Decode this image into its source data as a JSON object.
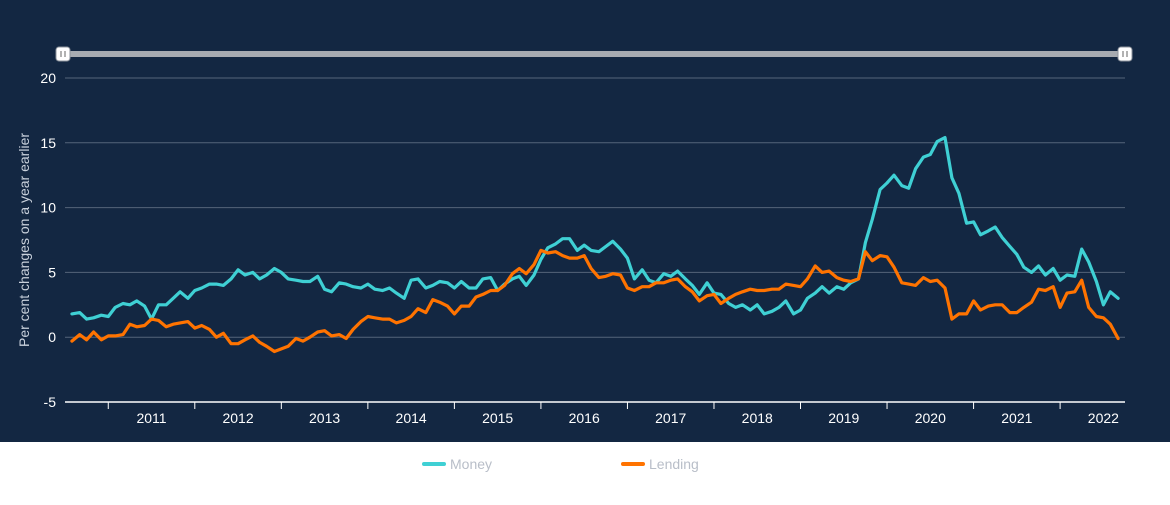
{
  "chart_data": {
    "type": "line",
    "ylabel": "Per cent changes on a year earlier",
    "ylim": [
      -5,
      20
    ],
    "yticks": [
      -5,
      0,
      5,
      10,
      15,
      20
    ],
    "xlim": [
      2010.5,
      2022.75
    ],
    "xtick_labels": [
      "2011",
      "2012",
      "2013",
      "2014",
      "2015",
      "2016",
      "2017",
      "2018",
      "2019",
      "2020",
      "2021",
      "2022"
    ],
    "grid": true,
    "legend": "bottom",
    "series": [
      {
        "name": "Money",
        "color": "#3fd0d4",
        "x": [
          2010.58,
          2010.67,
          2010.75,
          2010.83,
          2010.92,
          2011.0,
          2011.08,
          2011.17,
          2011.25,
          2011.33,
          2011.42,
          2011.5,
          2011.58,
          2011.67,
          2011.75,
          2011.83,
          2011.92,
          2012.0,
          2012.08,
          2012.17,
          2012.25,
          2012.33,
          2012.42,
          2012.5,
          2012.58,
          2012.67,
          2012.75,
          2012.83,
          2012.92,
          2013.0,
          2013.08,
          2013.17,
          2013.25,
          2013.33,
          2013.42,
          2013.5,
          2013.58,
          2013.67,
          2013.75,
          2013.83,
          2013.92,
          2014.0,
          2014.08,
          2014.17,
          2014.25,
          2014.33,
          2014.42,
          2014.5,
          2014.58,
          2014.67,
          2014.75,
          2014.83,
          2014.92,
          2015.0,
          2015.08,
          2015.17,
          2015.25,
          2015.33,
          2015.42,
          2015.5,
          2015.58,
          2015.67,
          2015.75,
          2015.83,
          2015.92,
          2016.0,
          2016.08,
          2016.17,
          2016.25,
          2016.33,
          2016.42,
          2016.5,
          2016.58,
          2016.67,
          2016.75,
          2016.83,
          2016.92,
          2017.0,
          2017.08,
          2017.17,
          2017.25,
          2017.33,
          2017.42,
          2017.5,
          2017.58,
          2017.67,
          2017.75,
          2017.83,
          2017.92,
          2018.0,
          2018.08,
          2018.17,
          2018.25,
          2018.33,
          2018.42,
          2018.5,
          2018.58,
          2018.67,
          2018.75,
          2018.83,
          2018.92,
          2019.0,
          2019.08,
          2019.17,
          2019.25,
          2019.33,
          2019.42,
          2019.5,
          2019.58,
          2019.67,
          2019.75,
          2019.83,
          2019.92,
          2020.0,
          2020.08,
          2020.17,
          2020.25,
          2020.33,
          2020.42,
          2020.5,
          2020.58,
          2020.67,
          2020.75,
          2020.83,
          2020.92,
          2021.0,
          2021.08,
          2021.17,
          2021.25,
          2021.33,
          2021.42,
          2021.5,
          2021.58,
          2021.67,
          2021.75,
          2021.83,
          2021.92,
          2022.0,
          2022.08,
          2022.17,
          2022.25,
          2022.33,
          2022.42,
          2022.5,
          2022.58,
          2022.67
        ],
        "y": [
          1.8,
          1.9,
          1.4,
          1.5,
          1.7,
          1.6,
          2.3,
          2.6,
          2.5,
          2.8,
          2.4,
          1.4,
          2.5,
          2.5,
          3.0,
          3.5,
          3.0,
          3.6,
          3.8,
          4.1,
          4.1,
          4.0,
          4.5,
          5.2,
          4.8,
          5.0,
          4.5,
          4.8,
          5.3,
          5.0,
          4.5,
          4.4,
          4.3,
          4.3,
          4.7,
          3.7,
          3.5,
          4.2,
          4.1,
          3.9,
          3.8,
          4.1,
          3.7,
          3.6,
          3.8,
          3.4,
          3.0,
          4.4,
          4.5,
          3.8,
          4.0,
          4.3,
          4.2,
          3.8,
          4.3,
          3.8,
          3.8,
          4.5,
          4.6,
          3.6,
          4.1,
          4.5,
          4.7,
          4.0,
          4.8,
          6.0,
          6.9,
          7.2,
          7.6,
          7.6,
          6.7,
          7.1,
          6.7,
          6.6,
          7.0,
          7.4,
          6.8,
          6.1,
          4.5,
          5.2,
          4.4,
          4.2,
          4.9,
          4.7,
          5.1,
          4.5,
          4.0,
          3.3,
          4.2,
          3.4,
          3.3,
          2.6,
          2.3,
          2.5,
          2.1,
          2.5,
          1.8,
          2.0,
          2.3,
          2.8,
          1.8,
          2.1,
          3.0,
          3.4,
          3.9,
          3.4,
          3.9,
          3.7,
          4.2,
          4.5,
          7.3,
          9.1,
          11.4,
          11.9,
          12.5,
          11.7,
          11.5,
          13.0,
          13.9,
          14.1,
          15.1,
          15.4,
          12.3,
          11.1,
          8.8,
          8.9,
          7.9,
          8.2,
          8.5,
          7.7,
          7.0,
          6.4,
          5.4,
          5.0,
          5.5,
          4.8,
          5.3,
          4.4,
          4.8,
          4.7,
          6.8,
          5.8,
          4.3,
          2.5,
          3.5,
          3.0
        ]
      },
      {
        "name": "Lending",
        "color": "#ff7300",
        "x": [
          2010.58,
          2010.67,
          2010.75,
          2010.83,
          2010.92,
          2011.0,
          2011.08,
          2011.17,
          2011.25,
          2011.33,
          2011.42,
          2011.5,
          2011.58,
          2011.67,
          2011.75,
          2011.83,
          2011.92,
          2012.0,
          2012.08,
          2012.17,
          2012.25,
          2012.33,
          2012.42,
          2012.5,
          2012.58,
          2012.67,
          2012.75,
          2012.83,
          2012.92,
          2013.0,
          2013.08,
          2013.17,
          2013.25,
          2013.33,
          2013.42,
          2013.5,
          2013.58,
          2013.67,
          2013.75,
          2013.83,
          2013.92,
          2014.0,
          2014.08,
          2014.17,
          2014.25,
          2014.33,
          2014.42,
          2014.5,
          2014.58,
          2014.67,
          2014.75,
          2014.83,
          2014.92,
          2015.0,
          2015.08,
          2015.17,
          2015.25,
          2015.33,
          2015.42,
          2015.5,
          2015.58,
          2015.67,
          2015.75,
          2015.83,
          2015.92,
          2016.0,
          2016.08,
          2016.17,
          2016.25,
          2016.33,
          2016.42,
          2016.5,
          2016.58,
          2016.67,
          2016.75,
          2016.83,
          2016.92,
          2017.0,
          2017.08,
          2017.17,
          2017.25,
          2017.33,
          2017.42,
          2017.5,
          2017.58,
          2017.67,
          2017.75,
          2017.83,
          2017.92,
          2018.0,
          2018.08,
          2018.17,
          2018.25,
          2018.33,
          2018.42,
          2018.5,
          2018.58,
          2018.67,
          2018.75,
          2018.83,
          2018.92,
          2019.0,
          2019.08,
          2019.17,
          2019.25,
          2019.33,
          2019.42,
          2019.5,
          2019.58,
          2019.67,
          2019.75,
          2019.83,
          2019.92,
          2020.0,
          2020.08,
          2020.17,
          2020.25,
          2020.33,
          2020.42,
          2020.5,
          2020.58,
          2020.67,
          2020.75,
          2020.83,
          2020.92,
          2021.0,
          2021.08,
          2021.17,
          2021.25,
          2021.33,
          2021.42,
          2021.5,
          2021.58,
          2021.67,
          2021.75,
          2021.83,
          2021.92,
          2022.0,
          2022.08,
          2022.17,
          2022.25,
          2022.33,
          2022.42,
          2022.5,
          2022.58,
          2022.67
        ],
        "y": [
          -0.3,
          0.2,
          -0.2,
          0.4,
          -0.2,
          0.1,
          0.1,
          0.2,
          1.0,
          0.8,
          0.9,
          1.4,
          1.3,
          0.8,
          1.0,
          1.1,
          1.2,
          0.7,
          0.9,
          0.6,
          0.0,
          0.3,
          -0.5,
          -0.5,
          -0.2,
          0.1,
          -0.4,
          -0.7,
          -1.1,
          -0.9,
          -0.7,
          -0.1,
          -0.3,
          0.0,
          0.4,
          0.5,
          0.1,
          0.2,
          -0.1,
          0.6,
          1.2,
          1.6,
          1.5,
          1.4,
          1.4,
          1.1,
          1.3,
          1.6,
          2.2,
          1.9,
          2.9,
          2.7,
          2.4,
          1.8,
          2.4,
          2.4,
          3.1,
          3.3,
          3.6,
          3.6,
          4.0,
          4.9,
          5.3,
          4.9,
          5.6,
          6.7,
          6.5,
          6.6,
          6.3,
          6.1,
          6.1,
          6.3,
          5.3,
          4.6,
          4.7,
          4.9,
          4.8,
          3.8,
          3.6,
          3.9,
          3.9,
          4.2,
          4.2,
          4.4,
          4.5,
          3.9,
          3.5,
          2.8,
          3.2,
          3.3,
          2.6,
          3.0,
          3.3,
          3.5,
          3.7,
          3.6,
          3.6,
          3.7,
          3.7,
          4.1,
          4.0,
          3.9,
          4.5,
          5.5,
          5.0,
          5.1,
          4.6,
          4.4,
          4.3,
          4.5,
          6.6,
          5.9,
          6.3,
          6.2,
          5.4,
          4.2,
          4.1,
          4.0,
          4.6,
          4.3,
          4.4,
          3.8,
          1.4,
          1.8,
          1.8,
          2.8,
          2.1,
          2.4,
          2.5,
          2.5,
          1.9,
          1.9,
          2.3,
          2.7,
          3.7,
          3.6,
          3.9,
          2.3,
          3.4,
          3.5,
          4.4,
          2.3,
          1.6,
          1.5,
          1.0,
          -0.1
        ]
      }
    ]
  }
}
